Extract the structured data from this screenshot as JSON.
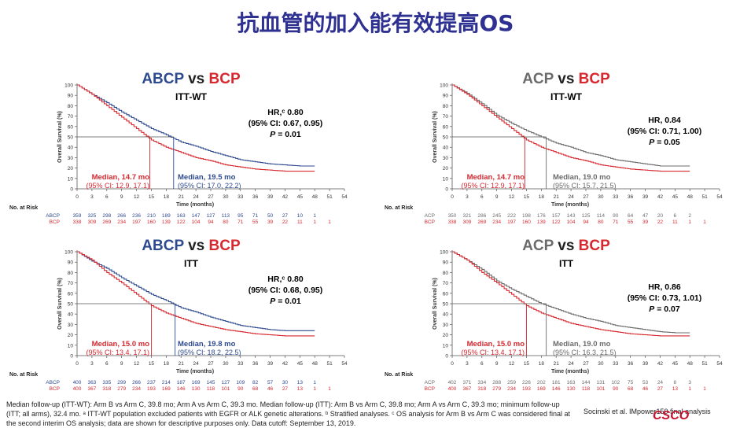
{
  "page_title": "抗血管的加入能有效提高OS",
  "colors": {
    "red": "#d7282f",
    "blue": "#2e4a8f",
    "gray": "#6b6b6b",
    "title": "#2e3192"
  },
  "panels": [
    {
      "id": "abcp_itt_wt",
      "title_a": "ABCP",
      "title_vs": "vs",
      "title_b": "BCP",
      "subtitle": "ITT-WT",
      "hr_line1": "HR,ᶜ 0.80",
      "hr_line2": "(95% CI: 0.67, 0.95)",
      "hr_p_label": "P",
      "hr_p_value": "= 0.01",
      "median_b_label": "Median, 14.7 mo",
      "median_b_ci": "(95% CI: 12.9, 17.1)",
      "median_a_label": "Median, 19.5 mo",
      "median_a_ci": "(95% CI: 17.0, 22.2)",
      "risk_row_a_label": "ABCP",
      "risk_row_b_label": "BCP",
      "risk_row_a": [
        "359",
        "325",
        "298",
        "266",
        "236",
        "210",
        "189",
        "163",
        "147",
        "127",
        "113",
        "95",
        "71",
        "50",
        "27",
        "10",
        "1"
      ],
      "risk_row_b": [
        "338",
        "309",
        "269",
        "234",
        "197",
        "160",
        "139",
        "122",
        "104",
        "94",
        "80",
        "71",
        "55",
        "39",
        "22",
        "11",
        "1",
        "1"
      ]
    },
    {
      "id": "acp_itt_wt",
      "title_a": "ACP",
      "title_vs": "vs",
      "title_b": "BCP",
      "subtitle": "ITT-WT",
      "hr_line1": "HR, 0.84",
      "hr_line2": "(95% CI: 0.71, 1.00)",
      "hr_p_label": "P",
      "hr_p_value": "= 0.05",
      "median_b_label": "Median, 14.7 mo",
      "median_b_ci": "(95% CI: 12.9, 17.1)",
      "median_a_label": "Median, 19.0 mo",
      "median_a_ci": "(95% CI: 15.7, 21.5)",
      "risk_row_a_label": "ACP",
      "risk_row_b_label": "BCP",
      "risk_row_a": [
        "350",
        "321",
        "286",
        "245",
        "222",
        "198",
        "176",
        "157",
        "143",
        "125",
        "114",
        "90",
        "64",
        "47",
        "20",
        "6",
        "2"
      ],
      "risk_row_b": [
        "338",
        "309",
        "269",
        "234",
        "197",
        "160",
        "139",
        "122",
        "104",
        "94",
        "80",
        "71",
        "55",
        "39",
        "22",
        "11",
        "1",
        "1"
      ]
    },
    {
      "id": "abcp_itt",
      "title_a": "ABCP",
      "title_vs": "vs",
      "title_b": "BCP",
      "subtitle": "ITT",
      "hr_line1": "HR,ᶜ 0.80",
      "hr_line2": "(95% CI: 0.68, 0.95)",
      "hr_p_label": "P",
      "hr_p_value": "= 0.01",
      "median_b_label": "Median, 15.0 mo",
      "median_b_ci": "(95% CI: 13.4, 17.1)",
      "median_a_label": "Median, 19.8 mo",
      "median_a_ci": "(95% CI: 18.2, 22.5)",
      "risk_row_a_label": "ABCP",
      "risk_row_b_label": "BCP",
      "risk_row_a": [
        "400",
        "363",
        "335",
        "299",
        "266",
        "237",
        "214",
        "187",
        "169",
        "145",
        "127",
        "109",
        "82",
        "57",
        "30",
        "13",
        "1"
      ],
      "risk_row_b": [
        "400",
        "367",
        "318",
        "279",
        "234",
        "193",
        "169",
        "146",
        "130",
        "118",
        "101",
        "90",
        "68",
        "46",
        "27",
        "13",
        "1",
        "1"
      ]
    },
    {
      "id": "acp_itt",
      "title_a": "ACP",
      "title_vs": "vs",
      "title_b": "BCP",
      "subtitle": "ITT",
      "hr_line1": "HR, 0.86",
      "hr_line2": "(95% CI: 0.73, 1.01)",
      "hr_p_label": "P",
      "hr_p_value": "= 0.07",
      "median_b_label": "Median, 15.0 mo",
      "median_b_ci": "(95% CI: 13.4, 17.1)",
      "median_a_label": "Median, 19.0 mo",
      "median_a_ci": "(95% CI: 16.3, 21.5)",
      "risk_row_a_label": "ACP",
      "risk_row_b_label": "BCP",
      "risk_row_a": [
        "402",
        "371",
        "334",
        "288",
        "259",
        "226",
        "202",
        "181",
        "163",
        "144",
        "131",
        "102",
        "75",
        "53",
        "24",
        "8",
        "3"
      ],
      "risk_row_b": [
        "400",
        "367",
        "318",
        "279",
        "234",
        "193",
        "169",
        "146",
        "130",
        "118",
        "101",
        "90",
        "68",
        "46",
        "27",
        "13",
        "1",
        "1"
      ]
    }
  ],
  "axis": {
    "ylabel": "Overall Survival (%)",
    "xlabel": "Time (months)",
    "yticks": [
      "0",
      "10",
      "20",
      "30",
      "40",
      "50",
      "60",
      "70",
      "80",
      "90",
      "100"
    ],
    "xticks": [
      "0",
      "3",
      "6",
      "9",
      "12",
      "15",
      "18",
      "21",
      "24",
      "27",
      "30",
      "33",
      "36",
      "39",
      "42",
      "45",
      "48",
      "51",
      "54"
    ],
    "risk_header": "No. at Risk"
  },
  "chart_data": [
    {
      "type": "line",
      "title": "ABCP vs BCP ITT-WT",
      "xlabel": "Time (months)",
      "ylabel": "Overall Survival (%)",
      "xlim": [
        0,
        54
      ],
      "ylim": [
        0,
        100
      ],
      "x": [
        0,
        3,
        6,
        9,
        12,
        15,
        18,
        21,
        24,
        27,
        30,
        33,
        36,
        39,
        42,
        45,
        48
      ],
      "series": [
        {
          "name": "ABCP",
          "values": [
            100,
            91,
            83,
            74,
            66,
            58,
            52,
            45,
            41,
            36,
            32,
            28,
            26,
            24,
            23,
            22,
            22
          ]
        },
        {
          "name": "BCP",
          "values": [
            100,
            91,
            80,
            69,
            58,
            47,
            40,
            35,
            30,
            27,
            23,
            21,
            19,
            18,
            17,
            17,
            17
          ]
        }
      ]
    },
    {
      "type": "line",
      "title": "ACP vs BCP ITT-WT",
      "xlabel": "Time (months)",
      "ylabel": "Overall Survival (%)",
      "xlim": [
        0,
        54
      ],
      "ylim": [
        0,
        100
      ],
      "x": [
        0,
        3,
        6,
        9,
        12,
        15,
        18,
        21,
        24,
        27,
        30,
        33,
        36,
        39,
        42,
        45,
        48
      ],
      "series": [
        {
          "name": "ACP",
          "values": [
            100,
            92,
            82,
            71,
            63,
            56,
            50,
            44,
            40,
            35,
            32,
            28,
            26,
            24,
            22,
            22,
            22
          ]
        },
        {
          "name": "BCP",
          "values": [
            100,
            91,
            80,
            69,
            58,
            47,
            40,
            35,
            30,
            27,
            23,
            21,
            19,
            18,
            17,
            17,
            17
          ]
        }
      ]
    },
    {
      "type": "line",
      "title": "ABCP vs BCP ITT",
      "xlabel": "Time (months)",
      "ylabel": "Overall Survival (%)",
      "xlim": [
        0,
        54
      ],
      "ylim": [
        0,
        100
      ],
      "x": [
        0,
        3,
        6,
        9,
        12,
        15,
        18,
        21,
        24,
        27,
        30,
        33,
        36,
        39,
        42,
        45,
        48
      ],
      "series": [
        {
          "name": "ABCP",
          "values": [
            100,
            91,
            84,
            75,
            67,
            59,
            53,
            46,
            42,
            37,
            33,
            29,
            27,
            25,
            24,
            24,
            24
          ]
        },
        {
          "name": "BCP",
          "values": [
            100,
            92,
            80,
            70,
            59,
            48,
            41,
            36,
            31,
            28,
            25,
            23,
            21,
            20,
            19,
            19,
            19
          ]
        }
      ]
    },
    {
      "type": "line",
      "title": "ACP vs BCP ITT",
      "xlabel": "Time (months)",
      "ylabel": "Overall Survival (%)",
      "xlim": [
        0,
        54
      ],
      "ylim": [
        0,
        100
      ],
      "x": [
        0,
        3,
        6,
        9,
        12,
        15,
        18,
        21,
        24,
        27,
        30,
        33,
        36,
        39,
        42,
        45,
        48
      ],
      "series": [
        {
          "name": "ACP",
          "values": [
            100,
            92,
            83,
            72,
            64,
            57,
            50,
            45,
            40,
            36,
            33,
            29,
            27,
            25,
            23,
            22,
            22
          ]
        },
        {
          "name": "BCP",
          "values": [
            100,
            92,
            80,
            70,
            59,
            48,
            41,
            36,
            31,
            28,
            25,
            23,
            21,
            20,
            19,
            19,
            19
          ]
        }
      ]
    }
  ],
  "footnote": "Median follow-up (ITT-WT): Arm B vs Arm C, 39.8 mo; Arm A vs Arm C, 39.3 mo. Median follow-up (ITT): Arm B vs Arm C, 39.8 mo; Arm A vs Arm C, 39.3 mo; minimum follow-up (ITT; all arms), 32.4 mo. ᵃ ITT-WT population excluded patients with EGFR or ALK genetic alterations. ᵇ Stratified analyses. ᶜ OS analysis for Arm B vs Arm C was considered final at the second interim OS analysis; data are shown for descriptive purposes only. Data cutoff: September 13, 2019.",
  "reference": "Socinski et al. IMpower150 final analysis",
  "logo_text": "CSCO"
}
